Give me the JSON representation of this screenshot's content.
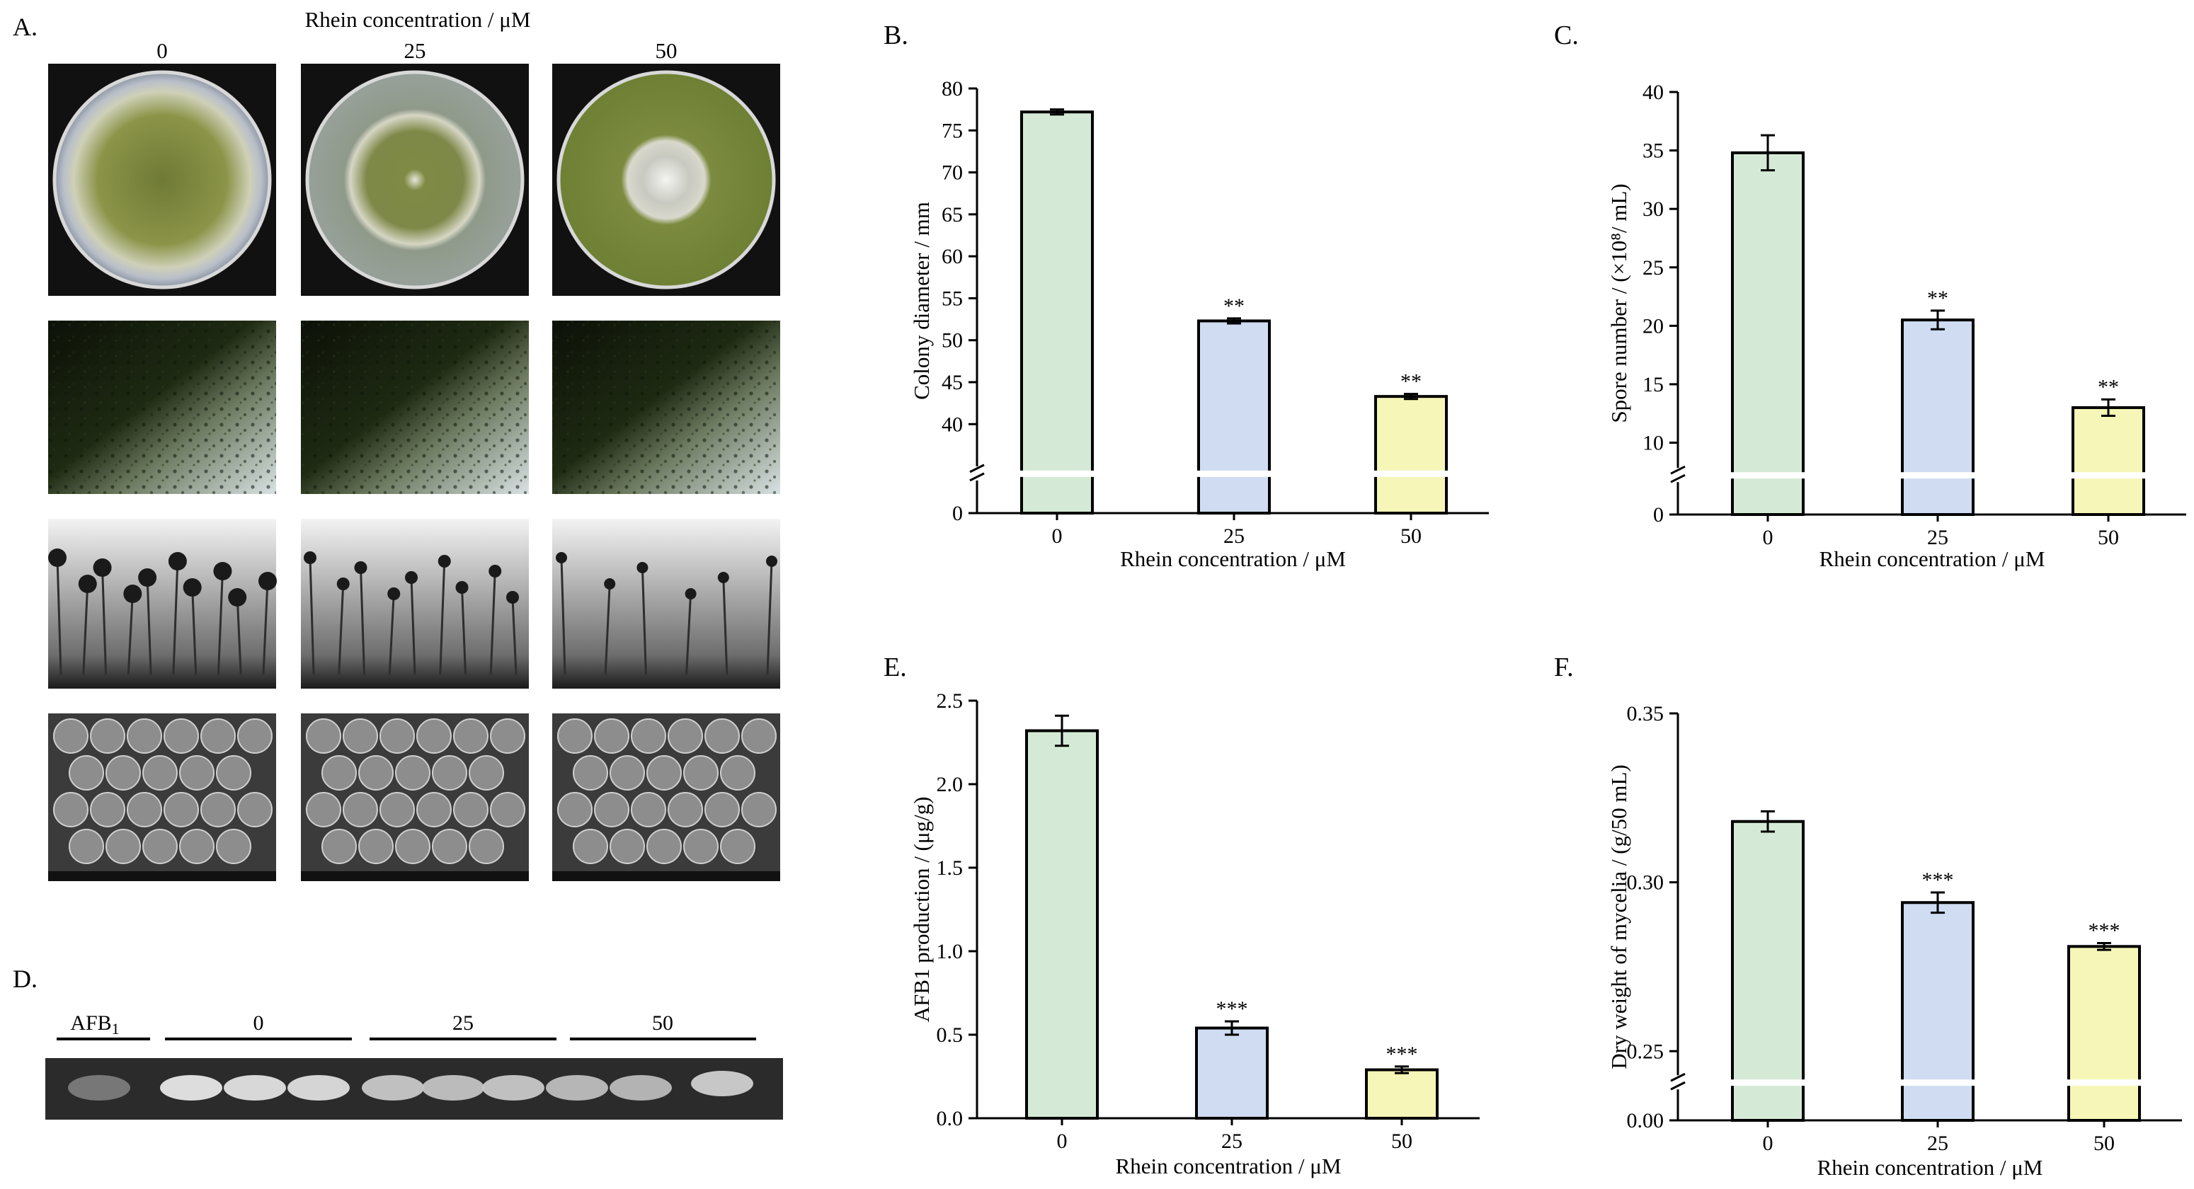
{
  "colors": {
    "bar_fills": [
      "#d5ead6",
      "#cfdcf2",
      "#f6f6b8"
    ],
    "bar_stroke": "#000000",
    "photo_dark": "#111111"
  },
  "panel_a": {
    "label": "A.",
    "header": "Rhein concentration / μM",
    "columns": [
      "0",
      "25",
      "50"
    ],
    "row_images": [
      "petri-dish-photo",
      "colony-edge-micrograph",
      "conidiophore-micrograph",
      "spore-sem-micrograph"
    ]
  },
  "panel_d": {
    "label": "D.",
    "lanes": [
      "AFB1",
      "0",
      "25",
      "50"
    ],
    "band_intensity": [
      0.35,
      0.95,
      0.92,
      0.9,
      0.78,
      0.75,
      0.78,
      0.72,
      0.7,
      0.82
    ]
  },
  "chart_data": [
    {
      "panel": "B.",
      "type": "bar",
      "categories": [
        "0",
        "25",
        "50"
      ],
      "values": [
        77.2,
        52.3,
        43.3
      ],
      "errors": [
        0.3,
        0.3,
        0.3
      ],
      "significance": [
        "",
        "**",
        "**"
      ],
      "ylabel": "Colony diameter / mm",
      "xlabel": "Rhein concentration / μM",
      "ylim": [
        0,
        80
      ],
      "axis_break": [
        0,
        38
      ],
      "yticks": [
        "0",
        "40",
        "45",
        "50",
        "55",
        "60",
        "65",
        "70",
        "75",
        "80"
      ]
    },
    {
      "panel": "C.",
      "type": "bar",
      "categories": [
        "0",
        "25",
        "50"
      ],
      "values": [
        34.8,
        20.5,
        13.0
      ],
      "errors": [
        1.5,
        0.8,
        0.7
      ],
      "significance": [
        "",
        "**",
        "**"
      ],
      "ylabel": "Spore number / (×10⁸/ mL)",
      "xlabel": "Rhein concentration / μM",
      "ylim": [
        0,
        40
      ],
      "axis_break": [
        0,
        10
      ],
      "yticks": [
        "0",
        "10",
        "15",
        "20",
        "25",
        "30",
        "35",
        "40"
      ]
    },
    {
      "panel": "E.",
      "type": "bar",
      "categories": [
        "0",
        "25",
        "50"
      ],
      "values": [
        2.32,
        0.54,
        0.29
      ],
      "errors": [
        0.09,
        0.04,
        0.02
      ],
      "significance": [
        "",
        "***",
        "***"
      ],
      "ylabel": "AFB1 production / (μg/g)",
      "xlabel": "Rhein concentration / μM",
      "ylim": [
        0,
        2.5
      ],
      "yticks": [
        "0.0",
        "0.5",
        "1.0",
        "1.5",
        "2.0",
        "2.5"
      ]
    },
    {
      "panel": "F.",
      "type": "bar",
      "categories": [
        "0",
        "25",
        "50"
      ],
      "values": [
        0.318,
        0.294,
        0.281
      ],
      "errors": [
        0.003,
        0.003,
        0.001
      ],
      "significance": [
        "",
        "***",
        "***"
      ],
      "ylabel": "Dry weight of mycelia / (g/50 mL)",
      "xlabel": "Rhein concentration / μM",
      "ylim": [
        0,
        0.35
      ],
      "axis_break": [
        0,
        0.25
      ],
      "yticks": [
        "0.00",
        "0.25",
        "0.30",
        "0.35"
      ]
    }
  ]
}
